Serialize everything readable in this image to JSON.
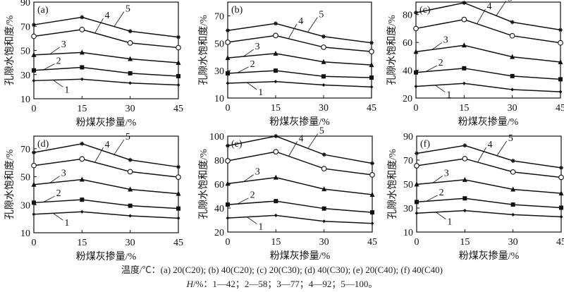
{
  "chart_data": [
    {
      "type": "line",
      "panel": "(a)",
      "xlabel": "粉煤灰掺量/%",
      "ylabel": "孔隙水饱和度/%",
      "x": [
        0,
        15,
        30,
        45
      ],
      "xticks": [
        0,
        15,
        30,
        45
      ],
      "ylim": [
        10,
        90
      ],
      "yticks": [
        10,
        30,
        50,
        70,
        90
      ],
      "series": [
        {
          "name": "1",
          "marker": "diamond",
          "values": [
            25,
            26.2,
            23,
            21.4
          ]
        },
        {
          "name": "2",
          "marker": "square",
          "values": [
            33.5,
            36,
            31.1,
            28.7
          ]
        },
        {
          "name": "3",
          "marker": "triangle",
          "values": [
            46.3,
            48.3,
            43,
            39.8
          ]
        },
        {
          "name": "4",
          "marker": "circle",
          "values": [
            61.7,
            67.3,
            56.2,
            52.3
          ]
        },
        {
          "name": "5",
          "marker": "star",
          "values": [
            71.2,
            77.5,
            65.9,
            61
          ]
        }
      ]
    },
    {
      "type": "line",
      "panel": "(b)",
      "xlabel": "粉煤灰掺量/%",
      "ylabel": "孔隙水饱和度/%",
      "x": [
        0,
        15,
        30,
        45
      ],
      "xticks": [
        0,
        15,
        30,
        45
      ],
      "ylim": [
        10,
        80
      ],
      "yticks": [
        10,
        30,
        50,
        70
      ],
      "series": [
        {
          "name": "1",
          "marker": "diamond",
          "values": [
            20.8,
            22,
            19.5,
            18.1
          ]
        },
        {
          "name": "2",
          "marker": "square",
          "values": [
            28,
            30,
            25.8,
            24.9
          ]
        },
        {
          "name": "3",
          "marker": "triangle",
          "values": [
            39.3,
            42.5,
            36.4,
            34.1
          ]
        },
        {
          "name": "4",
          "marker": "circle",
          "values": [
            50.7,
            55.6,
            47.1,
            43.9
          ]
        },
        {
          "name": "5",
          "marker": "star",
          "values": [
            59.3,
            64.4,
            54.9,
            50.3
          ]
        }
      ]
    },
    {
      "type": "line",
      "panel": "(c)",
      "xlabel": "粉煤灰掺量/%",
      "ylabel": "孔隙水饱和度/%",
      "x": [
        0,
        15,
        30,
        45
      ],
      "xticks": [
        0,
        15,
        30,
        45
      ],
      "ylim": [
        20,
        89
      ],
      "yticks": [
        20,
        40,
        60,
        80
      ],
      "series": [
        {
          "name": "1",
          "marker": "diamond",
          "values": [
            28.4,
            30.5,
            26.1,
            24.5
          ]
        },
        {
          "name": "2",
          "marker": "square",
          "values": [
            38.4,
            41.4,
            35.8,
            33.5
          ]
        },
        {
          "name": "3",
          "marker": "triangle",
          "values": [
            53.3,
            57.9,
            49.6,
            45.9
          ]
        },
        {
          "name": "4",
          "marker": "circle",
          "values": [
            70,
            76.5,
            64.8,
            59.7
          ]
        },
        {
          "name": "5",
          "marker": "star",
          "values": [
            81.4,
            88.5,
            74.6,
            69
          ]
        }
      ]
    },
    {
      "type": "line",
      "panel": "(d)",
      "xlabel": "粉煤灰掺量/%",
      "ylabel": "孔隙水饱和度/%",
      "x": [
        0,
        15,
        30,
        45
      ],
      "xticks": [
        0,
        15,
        30,
        45
      ],
      "ylim": [
        10,
        79
      ],
      "yticks": [
        10,
        30,
        50,
        70
      ],
      "series": [
        {
          "name": "1",
          "marker": "diamond",
          "values": [
            23.2,
            25,
            22.1,
            20.4
          ]
        },
        {
          "name": "2",
          "marker": "square",
          "values": [
            31.5,
            33.6,
            29.3,
            27.3
          ]
        },
        {
          "name": "3",
          "marker": "triangle",
          "values": [
            44.4,
            48,
            41,
            37.9
          ]
        },
        {
          "name": "4",
          "marker": "circle",
          "values": [
            58,
            62.7,
            53.6,
            49.7
          ]
        },
        {
          "name": "5",
          "marker": "star",
          "values": [
            67.3,
            73.6,
            62,
            57
          ]
        }
      ]
    },
    {
      "type": "line",
      "panel": "(e)",
      "xlabel": "粉煤灰掺量/%",
      "ylabel": "孔隙水饱和度/%",
      "x": [
        0,
        15,
        30,
        45
      ],
      "xticks": [
        0,
        15,
        30,
        45
      ],
      "ylim": [
        20,
        100
      ],
      "yticks": [
        20,
        40,
        60,
        80,
        100
      ],
      "series": [
        {
          "name": "1",
          "marker": "diamond",
          "values": [
            31.7,
            33.9,
            29,
            27.2
          ]
        },
        {
          "name": "2",
          "marker": "square",
          "values": [
            42.9,
            45.8,
            39.6,
            36.4
          ]
        },
        {
          "name": "3",
          "marker": "triangle",
          "values": [
            60.4,
            65.5,
            55.8,
            51.2
          ]
        },
        {
          "name": "4",
          "marker": "circle",
          "values": [
            79.4,
            87,
            72.9,
            67.7
          ]
        },
        {
          "name": "5",
          "marker": "star",
          "values": [
            92,
            100,
            84.6,
            77.3
          ]
        }
      ]
    },
    {
      "type": "line",
      "panel": "(f)",
      "xlabel": "粉煤灰掺量/%",
      "ylabel": "孔隙水饱和度/%",
      "x": [
        0,
        15,
        30,
        45
      ],
      "xticks": [
        0,
        15,
        30,
        45
      ],
      "ylim": [
        10,
        90
      ],
      "yticks": [
        10,
        30,
        50,
        70,
        90
      ],
      "series": [
        {
          "name": "1",
          "marker": "diamond",
          "values": [
            25.7,
            27.9,
            24.5,
            22.7
          ]
        },
        {
          "name": "2",
          "marker": "square",
          "values": [
            35.1,
            38.1,
            32.9,
            30.3
          ]
        },
        {
          "name": "3",
          "marker": "triangle",
          "values": [
            49.8,
            53.6,
            45.6,
            42.3
          ]
        },
        {
          "name": "4",
          "marker": "circle",
          "values": [
            65.3,
            71.2,
            60.1,
            55.6
          ]
        },
        {
          "name": "5",
          "marker": "star",
          "values": [
            75.6,
            82.2,
            69.4,
            63.6
          ]
        }
      ]
    }
  ],
  "caption": {
    "line1": "温度/℃：(a) 20(C20); (b) 40(C20); (c) 20(C30); (d) 40(C30); (e) 20(C40); (f) 40(C40)",
    "line2_var": "H",
    "line2_rest": "/%：1—42；2—58；3—77；4—92；5—100。"
  }
}
